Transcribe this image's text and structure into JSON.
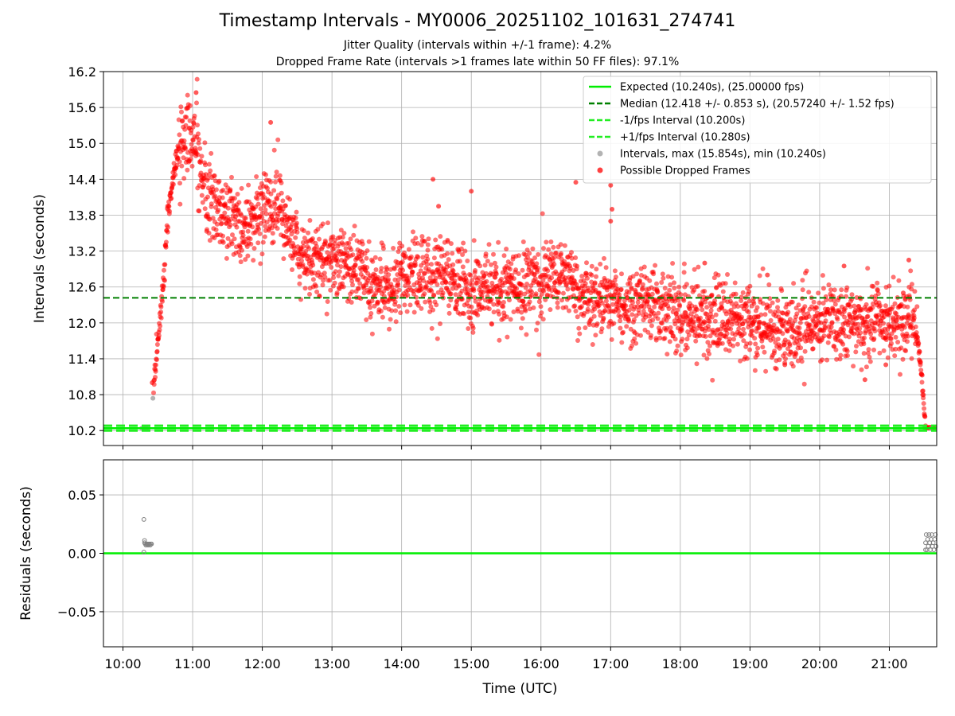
{
  "figure": {
    "title": "Timestamp Intervals - MY0006_20251102_101631_274741",
    "subtitle_jitter": "Jitter Quality (intervals within +/-1 frame): 4.2%",
    "subtitle_dropped": "Dropped Frame Rate (intervals >1 frames late within 50 FF files): 97.1%"
  },
  "chart_data": [
    {
      "type": "scatter",
      "title": "Timestamp Intervals - MY0006_20251102_101631_274741",
      "xlabel": "",
      "ylabel": "Intervals (seconds)",
      "x_units": "hours UTC (10.5 = 10:30)",
      "xlim": [
        9.72,
        21.68
      ],
      "ylim": [
        9.95,
        16.2
      ],
      "y_ticks": [
        "10.2",
        "10.8",
        "11.4",
        "12.0",
        "12.6",
        "13.2",
        "13.8",
        "14.4",
        "15.0",
        "15.6",
        "16.2"
      ],
      "y_tick_values": [
        10.2,
        10.8,
        11.4,
        12.0,
        12.6,
        13.2,
        13.8,
        14.4,
        15.0,
        15.6,
        16.2
      ],
      "x_tick_values": [
        10,
        11,
        12,
        13,
        14,
        15,
        16,
        17,
        18,
        19,
        20,
        21
      ],
      "grid": true,
      "legend_position": "top-right",
      "legend": [
        {
          "label": "Expected (10.240s), (25.00000 fps)",
          "style": "solid-line",
          "color": "#00ee00"
        },
        {
          "label": "Median (12.418 +/- 0.853 s), (20.57240 +/- 1.52 fps)",
          "style": "dashed-line",
          "color": "#008000"
        },
        {
          "label": "-1/fps Interval (10.200s)",
          "style": "dashed-line",
          "color": "#22ee22"
        },
        {
          "label": "+1/fps Interval (10.280s)",
          "style": "dashed-line",
          "color": "#22ee22"
        },
        {
          "label": "Intervals, max (15.854s), min (10.240s)",
          "style": "marker",
          "color": "#999999"
        },
        {
          "label": "Possible Dropped Frames",
          "style": "marker",
          "color": "#ff0000"
        }
      ],
      "lines": {
        "expected": 10.24,
        "median": 12.418,
        "minus_one_frame": 10.2,
        "plus_one_frame": 10.28
      },
      "series": [
        {
          "name": "Intervals, max (15.854s), min (10.240s)",
          "color": "#999999",
          "points": [
            [
              10.27,
              10.24
            ],
            [
              10.3,
              10.24
            ],
            [
              10.33,
              10.24
            ],
            [
              10.36,
              10.25
            ],
            [
              10.43,
              10.74
            ],
            [
              21.5,
              10.25
            ],
            [
              21.6,
              10.24
            ]
          ]
        },
        {
          "name": "Possible Dropped Frames",
          "color": "#ff0000",
          "trend": [
            [
              10.44,
              10.95
            ],
            [
              10.5,
              11.7
            ],
            [
              10.58,
              12.7
            ],
            [
              10.65,
              13.8
            ],
            [
              10.75,
              14.7
            ],
            [
              10.9,
              15.2
            ],
            [
              11.05,
              15.0
            ],
            [
              11.2,
              14.2
            ],
            [
              11.35,
              13.9
            ],
            [
              11.6,
              13.7
            ],
            [
              11.9,
              13.6
            ],
            [
              12.05,
              13.8
            ],
            [
              12.2,
              14.0
            ],
            [
              12.35,
              13.7
            ],
            [
              12.55,
              13.2
            ],
            [
              12.8,
              13.0
            ],
            [
              13.1,
              13.1
            ],
            [
              13.3,
              12.9
            ],
            [
              13.6,
              12.6
            ],
            [
              14.0,
              12.7
            ],
            [
              14.5,
              12.8
            ],
            [
              15.0,
              12.6
            ],
            [
              15.5,
              12.6
            ],
            [
              16.0,
              12.7
            ],
            [
              16.3,
              12.8
            ],
            [
              16.6,
              12.5
            ],
            [
              17.0,
              12.35
            ],
            [
              17.5,
              12.35
            ],
            [
              18.0,
              12.1
            ],
            [
              18.5,
              12.1
            ],
            [
              19.0,
              12.0
            ],
            [
              19.5,
              11.95
            ],
            [
              20.0,
              12.0
            ],
            [
              20.5,
              12.05
            ],
            [
              21.0,
              12.0
            ],
            [
              21.3,
              12.1
            ],
            [
              21.4,
              11.8
            ],
            [
              21.45,
              11.3
            ],
            [
              21.48,
              10.9
            ],
            [
              21.5,
              10.55
            ],
            [
              21.52,
              10.3
            ]
          ],
          "outliers": [
            [
              10.42,
              11.0
            ],
            [
              11.05,
              15.85
            ],
            [
              12.12,
              15.35
            ],
            [
              14.45,
              14.4
            ],
            [
              14.53,
              13.95
            ],
            [
              15.0,
              14.2
            ],
            [
              16.5,
              14.35
            ],
            [
              17.0,
              14.3
            ],
            [
              17.02,
              13.9
            ],
            [
              17.0,
              13.7
            ],
            [
              18.35,
              13.0
            ],
            [
              19.25,
              12.8
            ],
            [
              19.5,
              11.3
            ],
            [
              20.35,
              12.95
            ],
            [
              20.65,
              11.05
            ],
            [
              21.2,
              12.5
            ],
            [
              21.28,
              13.05
            ],
            [
              20.95,
              11.3
            ]
          ]
        }
      ]
    },
    {
      "type": "scatter",
      "title": "",
      "xlabel": "Time (UTC)",
      "ylabel": "Residuals (seconds)",
      "xlim": [
        9.72,
        21.68
      ],
      "ylim": [
        -0.08,
        0.08
      ],
      "x_ticks": [
        "10:00",
        "11:00",
        "12:00",
        "13:00",
        "14:00",
        "15:00",
        "16:00",
        "17:00",
        "18:00",
        "19:00",
        "20:00",
        "21:00"
      ],
      "x_tick_values": [
        10,
        11,
        12,
        13,
        14,
        15,
        16,
        17,
        18,
        19,
        20,
        21
      ],
      "y_ticks": [
        "−0.05",
        "0.00",
        "0.05"
      ],
      "y_tick_values": [
        -0.05,
        0.0,
        0.05
      ],
      "grid": true,
      "lines": {
        "zero": 0.0
      },
      "series": [
        {
          "name": "",
          "color": "#808080",
          "points": [
            [
              10.3,
              0.029
            ],
            [
              10.3,
              0.001
            ],
            [
              10.31,
              0.011
            ],
            [
              10.31,
              0.009
            ],
            [
              10.32,
              0.008
            ],
            [
              10.33,
              0.007
            ],
            [
              10.34,
              0.008
            ],
            [
              10.35,
              0.008
            ],
            [
              10.36,
              0.007
            ],
            [
              10.37,
              0.008
            ],
            [
              10.38,
              0.008
            ],
            [
              10.39,
              0.007
            ],
            [
              10.4,
              0.008
            ],
            [
              10.41,
              0.008
            ],
            [
              21.52,
              0.003
            ],
            [
              21.52,
              0.009
            ],
            [
              21.53,
              0.016
            ],
            [
              21.54,
              0.003
            ],
            [
              21.55,
              0.012
            ],
            [
              21.56,
              0.006
            ],
            [
              21.57,
              0.016
            ],
            [
              21.58,
              0.009
            ],
            [
              21.59,
              0.003
            ],
            [
              21.6,
              0.012
            ],
            [
              21.61,
              0.016
            ],
            [
              21.62,
              0.006
            ],
            [
              21.63,
              0.009
            ],
            [
              21.64,
              0.003
            ],
            [
              21.65,
              0.012
            ],
            [
              21.66,
              0.016
            ],
            [
              21.67,
              0.006
            ]
          ]
        }
      ]
    }
  ]
}
